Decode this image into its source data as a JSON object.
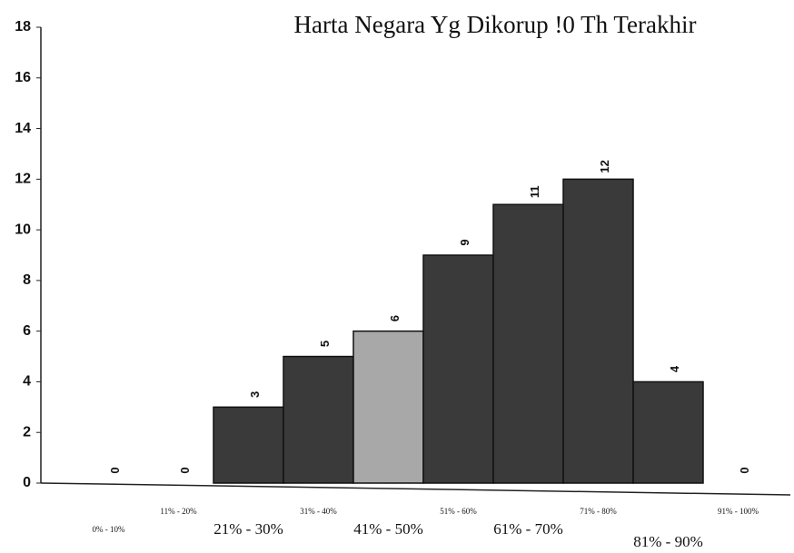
{
  "chart_data": {
    "type": "bar",
    "title": "Harta Negara Yg Dikorup !0 Th Terakhir",
    "categories": [
      "0% - 10%",
      "11% - 20%",
      "21% - 30%",
      "31% - 40%",
      "41% - 50%",
      "51% - 60%",
      "61% - 70%",
      "71% - 80%",
      "81% - 90%",
      "91% - 100%"
    ],
    "values": [
      0,
      0,
      3,
      5,
      6,
      9,
      11,
      12,
      4,
      0
    ],
    "colors": [
      "#3a3a3a",
      "#3a3a3a",
      "#3a3a3a",
      "#3a3a3a",
      "#a8a8a8",
      "#3a3a3a",
      "#3a3a3a",
      "#3a3a3a",
      "#3a3a3a",
      "#3a3a3a"
    ],
    "ylim": [
      0,
      18
    ],
    "yticks": [
      0,
      2,
      4,
      6,
      8,
      10,
      12,
      14,
      16,
      18
    ],
    "grid": false
  }
}
